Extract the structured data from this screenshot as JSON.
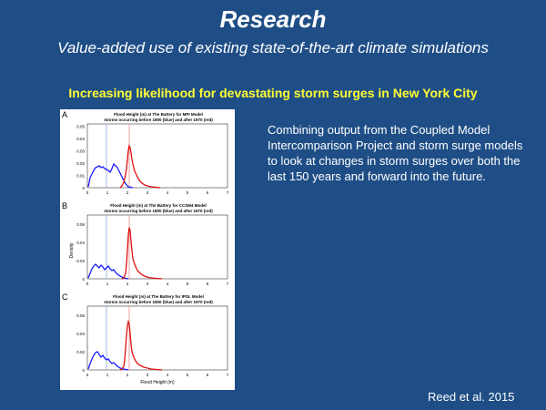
{
  "slide": {
    "title": "Research",
    "subtitle": "Value-added use of existing state-of-the-art climate simulations",
    "headline": "Increasing likelihood for devastating storm surges in New York City",
    "body": "Combining output from the Coupled Model Intercomparison Project and storm surge models to look at changes in storm surges over both the last 150 years and forward into the future.",
    "citation": "Reed et al. 2015"
  },
  "colors": {
    "background": "#1f4e86",
    "headline": "#ffff33",
    "series_blue": "#1a1aff",
    "series_red": "#e01010",
    "line_blue_light": "#9fb8e6",
    "line_red_light": "#f0a0a0"
  },
  "figure": {
    "panels": [
      {
        "letter": "A",
        "title_line1": "Flood Height (m) at The Battery for MPI Model",
        "title_line2": "storms occurring before 1800 (blue) and after 1970 (red)",
        "ylabel": "",
        "xlabel": "",
        "yticks": [
          "0",
          "0.01",
          "0.02",
          "0.03",
          "0.04",
          "0.05"
        ],
        "xticks": [
          "0",
          "1",
          "2",
          "3",
          "4",
          "5",
          "6",
          "7"
        ]
      },
      {
        "letter": "B",
        "title_line1": "Flood Height (m) at The Battery for CCSM4 Model",
        "title_line2": "storms occurring before 1800 (blue) and after 1970 (red)",
        "ylabel": "Density",
        "xlabel": "",
        "yticks": [
          "0",
          "0.02",
          "0.04",
          "0.06"
        ],
        "xticks": [
          "0",
          "1",
          "2",
          "3",
          "4",
          "5",
          "6",
          "7"
        ]
      },
      {
        "letter": "C",
        "title_line1": "Flood Height (m) at The Battery for IPSL Model",
        "title_line2": "storms occurring before 1800 (blue) and after 1970 (red)",
        "ylabel": "",
        "xlabel": "Flood Height (m)",
        "yticks": [
          "0",
          "0.02",
          "0.04",
          "0.06"
        ],
        "xticks": [
          "0",
          "1",
          "2",
          "3",
          "4",
          "5",
          "6",
          "7"
        ]
      }
    ]
  }
}
